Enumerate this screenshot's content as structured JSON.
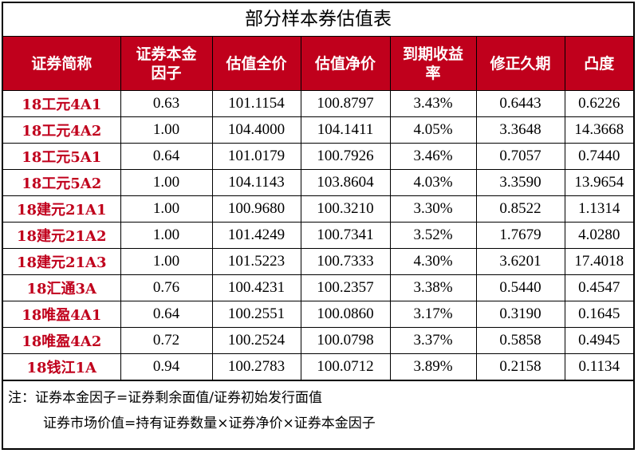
{
  "title": "部分样本券估值表",
  "headers": [
    "证券简称",
    "证券本金因子",
    "估值全价",
    "估值净价",
    "到期收益率",
    "修正久期",
    "凸度"
  ],
  "rows": [
    [
      "18工元4A1",
      "0.63",
      "101.1154",
      "100.8797",
      "3.43%",
      "0.6443",
      "0.6226"
    ],
    [
      "18工元4A2",
      "1.00",
      "104.4000",
      "104.1411",
      "4.05%",
      "3.3648",
      "14.3668"
    ],
    [
      "18工元5A1",
      "0.64",
      "101.0179",
      "100.7926",
      "3.46%",
      "0.7057",
      "0.7440"
    ],
    [
      "18工元5A2",
      "1.00",
      "104.1143",
      "103.8604",
      "4.03%",
      "3.3590",
      "13.9654"
    ],
    [
      "18建元21A1",
      "1.00",
      "100.9680",
      "100.3210",
      "3.30%",
      "0.8522",
      "1.1314"
    ],
    [
      "18建元21A2",
      "1.00",
      "101.4249",
      "100.7341",
      "3.52%",
      "1.7679",
      "4.0280"
    ],
    [
      "18建元21A3",
      "1.00",
      "101.5223",
      "100.7333",
      "4.30%",
      "3.6201",
      "17.4018"
    ],
    [
      "18汇通3A",
      "0.76",
      "100.4231",
      "100.2357",
      "3.38%",
      "0.5440",
      "0.4547"
    ],
    [
      "18唯盈4A1",
      "0.64",
      "100.2551",
      "100.0860",
      "3.17%",
      "0.3190",
      "0.1645"
    ],
    [
      "18唯盈4A2",
      "0.72",
      "100.2524",
      "100.0798",
      "3.37%",
      "0.5858",
      "0.4945"
    ],
    [
      "18钱江1A",
      "0.94",
      "100.2783",
      "100.0712",
      "3.89%",
      "0.2158",
      "0.1134"
    ]
  ],
  "notes": [
    "注：证券本金因子=证券剩余面值/证券初始发行面值",
    "证券市场价值=持有证券数量×证券净价×证券本金因子"
  ],
  "colors": {
    "header_bg": "#c0001c",
    "name_text": "#c0001c"
  }
}
